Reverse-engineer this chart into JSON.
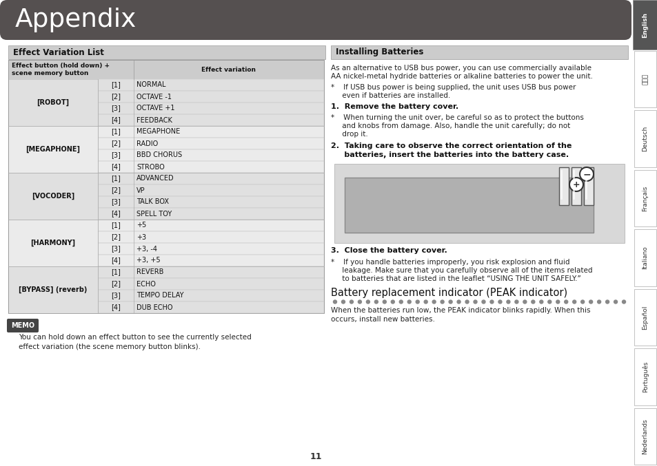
{
  "title": "Appendix",
  "title_bg": "#555050",
  "title_color": "#ffffff",
  "page_bg": "#ffffff",
  "section_left_title": "Effect Variation List",
  "section_right_title": "Installing Batteries",
  "section_header_bg": "#cccccc",
  "table_header_col1": "Effect button (hold down) +\nscene memory button",
  "table_header_col2": "Effect variation",
  "table_data": [
    {
      "group": "[ROBOT]",
      "num": "[1]",
      "effect": "NORMAL",
      "grp_idx": 0
    },
    {
      "group": "",
      "num": "[2]",
      "effect": "OCTAVE -1",
      "grp_idx": 0
    },
    {
      "group": "",
      "num": "[3]",
      "effect": "OCTAVE +1",
      "grp_idx": 0
    },
    {
      "group": "",
      "num": "[4]",
      "effect": "FEEDBACK",
      "grp_idx": 0
    },
    {
      "group": "[MEGAPHONE]",
      "num": "[1]",
      "effect": "MEGAPHONE",
      "grp_idx": 1
    },
    {
      "group": "",
      "num": "[2]",
      "effect": "RADIO",
      "grp_idx": 1
    },
    {
      "group": "",
      "num": "[3]",
      "effect": "BBD CHORUS",
      "grp_idx": 1
    },
    {
      "group": "",
      "num": "[4]",
      "effect": "STROBO",
      "grp_idx": 1
    },
    {
      "group": "[VOCODER]",
      "num": "[1]",
      "effect": "ADVANCED",
      "grp_idx": 2
    },
    {
      "group": "",
      "num": "[2]",
      "effect": "VP",
      "grp_idx": 2
    },
    {
      "group": "",
      "num": "[3]",
      "effect": "TALK BOX",
      "grp_idx": 2
    },
    {
      "group": "",
      "num": "[4]",
      "effect": "SPELL TOY",
      "grp_idx": 2
    },
    {
      "group": "[HARMONY]",
      "num": "[1]",
      "effect": "+5",
      "grp_idx": 3
    },
    {
      "group": "",
      "num": "[2]",
      "effect": "+3",
      "grp_idx": 3
    },
    {
      "group": "",
      "num": "[3]",
      "effect": "+3, -4",
      "grp_idx": 3
    },
    {
      "group": "",
      "num": "[4]",
      "effect": "+3, +5",
      "grp_idx": 3
    },
    {
      "group": "[BYPASS] (reverb)",
      "num": "[1]",
      "effect": "REVERB",
      "grp_idx": 4
    },
    {
      "group": "",
      "num": "[2]",
      "effect": "ECHO",
      "grp_idx": 4
    },
    {
      "group": "",
      "num": "[3]",
      "effect": "TEMPO DELAY",
      "grp_idx": 4
    },
    {
      "group": "",
      "num": "[4]",
      "effect": "DUB ECHO",
      "grp_idx": 4
    }
  ],
  "group_spans": [
    {
      "name": "[ROBOT]",
      "start": 0,
      "end": 3
    },
    {
      "name": "[MEGAPHONE]",
      "start": 4,
      "end": 7
    },
    {
      "name": "[VOCODER]",
      "start": 8,
      "end": 11
    },
    {
      "name": "[HARMONY]",
      "start": 12,
      "end": 15
    },
    {
      "name": "[BYPASS] (reverb)",
      "start": 16,
      "end": 19
    }
  ],
  "row_bg_even": "#e6e6e6",
  "row_bg_odd": "#f2f2f2",
  "memo_text": "You can hold down an effect button to see the currently selected\neffect variation (the scene memory button blinks).",
  "install_para1_line1": "As an alternative to USB bus power, you can use commercially available",
  "install_para1_line2": "AA nickel-metal hydride batteries or alkaline batteries to power the unit.",
  "install_bullet1_line1": "*    If USB bus power is being supplied, the unit uses USB bus power",
  "install_bullet1_line2": "     even if batteries are installed.",
  "install_step1": "1.  Remove the battery cover.",
  "install_bullet2_line1": "*    When turning the unit over, be careful so as to protect the buttons",
  "install_bullet2_line2": "     and knobs from damage. Also, handle the unit carefully; do not",
  "install_bullet2_line3": "     drop it.",
  "install_step2_line1": "2.  Taking care to observe the correct orientation of the",
  "install_step2_line2": "     batteries, insert the batteries into the battery case.",
  "install_step3": "3.  Close the battery cover.",
  "install_bullet3_line1": "*    If you handle batteries improperly, you risk explosion and fluid",
  "install_bullet3_line2": "     leakage. Make sure that you carefully observe all of the items related",
  "install_bullet3_line3": "     to batteries that are listed in the leaflet “USING THE UNIT SAFELY.”",
  "battery_section_title": "Battery replacement indicator (PEAK indicator)",
  "battery_text_line1": "When the batteries run low, the PEAK indicator blinks rapidly. When this",
  "battery_text_line2": "occurs, install new batteries.",
  "sidebar_labels": [
    "English",
    "日本語",
    "Deutsch",
    "Français",
    "Italiano",
    "Español",
    "Português",
    "Nederlands"
  ],
  "page_number": "11"
}
